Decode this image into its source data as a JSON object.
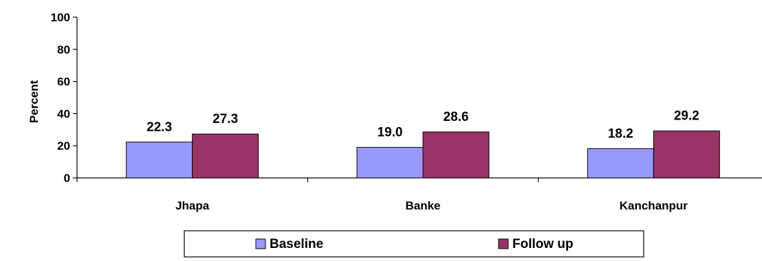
{
  "chart_data": {
    "type": "bar",
    "title": "",
    "xlabel": "",
    "ylabel": "Percent",
    "ylim": [
      0,
      100
    ],
    "yticks": [
      0,
      20,
      40,
      60,
      80,
      100
    ],
    "grid": false,
    "legend_position": "bottom",
    "categories": [
      "Jhapa",
      "Banke",
      "Kanchanpur"
    ],
    "series": [
      {
        "name": "Baseline",
        "values": [
          22.3,
          19.0,
          18.2
        ],
        "color": "#9999ff",
        "labels": [
          "22.3",
          "19.0",
          "18.2"
        ]
      },
      {
        "name": "Follow up",
        "values": [
          27.3,
          28.6,
          29.2
        ],
        "color": "#993366",
        "labels": [
          "27.3",
          "28.6",
          "29.2"
        ]
      }
    ]
  }
}
